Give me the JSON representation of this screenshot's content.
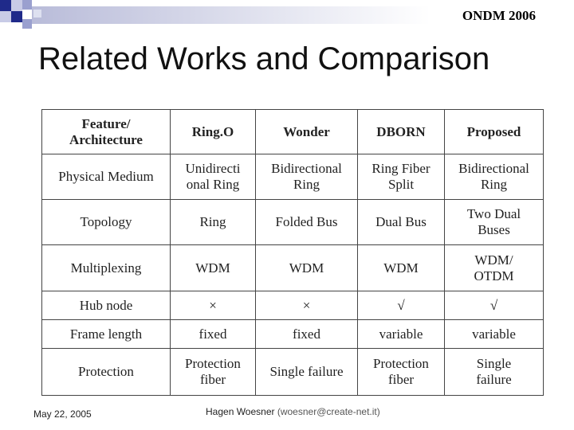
{
  "header": {
    "conference": "ONDM 2006",
    "title": "Related Works and Comparison"
  },
  "table": {
    "columns": [
      "Feature/\nArchitecture",
      "Ring.O",
      "Wonder",
      "DBORN",
      "Proposed"
    ],
    "rows": [
      [
        "Physical Medium",
        "Unidirecti\nonal Ring",
        "Bidirectional\nRing",
        "Ring Fiber\nSplit",
        "Bidirectional\nRing"
      ],
      [
        "Topology",
        "Ring",
        "Folded Bus",
        "Dual Bus",
        "Two Dual\nBuses"
      ],
      [
        "Multiplexing",
        "WDM",
        "WDM",
        "WDM",
        "WDM/\nOTDM"
      ],
      [
        "Hub node",
        "×",
        "×",
        "√",
        "√"
      ],
      [
        "Frame length",
        "fixed",
        "fixed",
        "variable",
        "variable"
      ],
      [
        "Protection",
        "Protection\nfiber",
        "Single failure",
        "Protection\nfiber",
        "Single\nfailure"
      ]
    ]
  },
  "footer": {
    "date": "May 22, 2005",
    "author": "Hagen Woesner",
    "email": "(woesner@create-net.it)"
  }
}
